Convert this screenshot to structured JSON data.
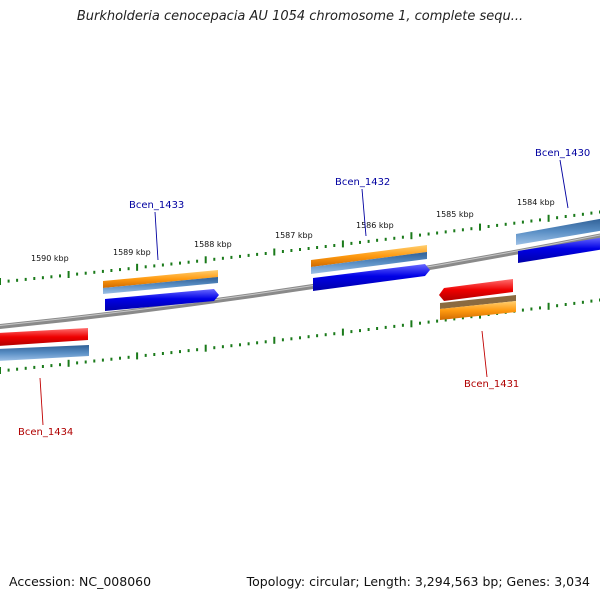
{
  "title": "Burkholderia cenocepacia AU 1054 chromosome 1, complete sequ...",
  "footer": {
    "accession": "Accession: NC_008060",
    "topology": "Topology: circular; Length: 3,294,563 bp; Genes: 3,034"
  },
  "colors": {
    "backbone": "#808080",
    "tick": "#1a7a1a",
    "label_forward": "#0000a0",
    "label_reverse": "#b00000",
    "gene_blue": "#0000e0",
    "gene_steel": "#4a7fb5",
    "gene_orange": "#ff9a10",
    "gene_red": "#ee0000"
  },
  "tick_labels": [
    "1590 kbp",
    "1589 kbp",
    "1588 kbp",
    "1587 kbp",
    "1586 kbp",
    "1585 kbp",
    "1584 kbp"
  ],
  "genes": [
    {
      "id": "Bcen_1434",
      "strand": "reverse"
    },
    {
      "id": "Bcen_1433",
      "strand": "forward"
    },
    {
      "id": "Bcen_1432",
      "strand": "forward"
    },
    {
      "id": "Bcen_1431",
      "strand": "reverse"
    },
    {
      "id": "Bcen_1430",
      "strand": "forward"
    }
  ]
}
